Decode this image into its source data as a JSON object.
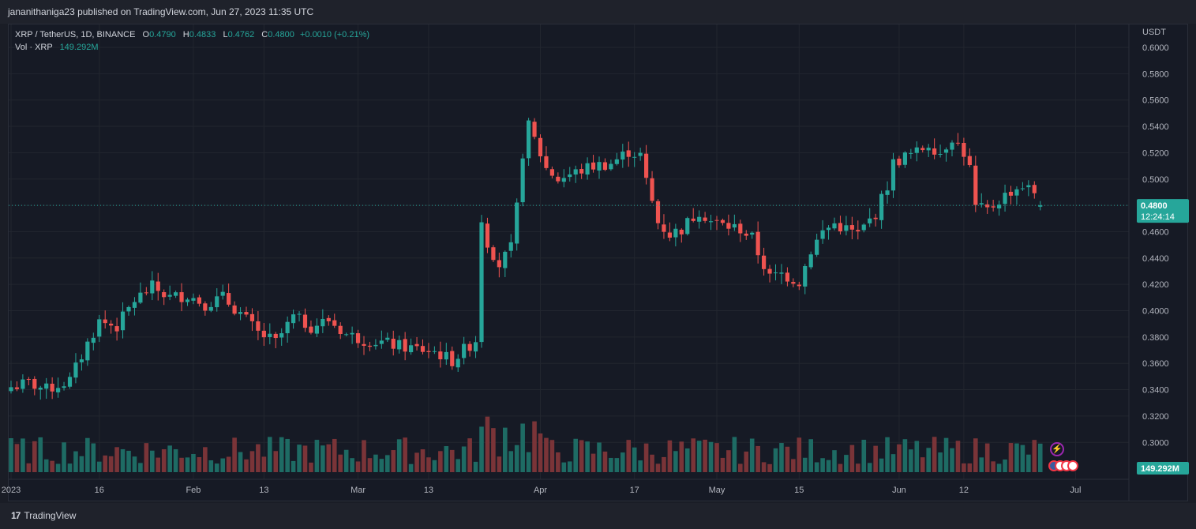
{
  "header": {
    "publish_info": "jananithaniga23 published on TradingView.com, Jun 27, 2023 11:35 UTC"
  },
  "legend": {
    "symbol": "XRP / TetherUS, 1D, BINANCE",
    "o_label": "O",
    "o_value": "0.4790",
    "h_label": "H",
    "h_value": "0.4833",
    "l_label": "L",
    "l_value": "0.4762",
    "c_label": "C",
    "c_value": "0.4800",
    "change": "+0.0010 (+0.21%)",
    "vol_label": "Vol · XRP",
    "vol_value": "149.292M"
  },
  "footer": {
    "brand": "TradingView",
    "brand_mark": "17"
  },
  "colors": {
    "up": "#26a69a",
    "down": "#ef5350",
    "up_vol": "#1e6b64",
    "down_vol": "#7a3438",
    "grid": "#22262f",
    "price_line": "#26a69a"
  },
  "chart_data": {
    "type": "candlestick",
    "currency": "USDT",
    "ylim": [
      0.285,
      0.605
    ],
    "y_ticks": [
      "0.6000",
      "0.5800",
      "0.5600",
      "0.5400",
      "0.5200",
      "0.5000",
      "0.4800",
      "0.4600",
      "0.4400",
      "0.4200",
      "0.4000",
      "0.3800",
      "0.3600",
      "0.3400",
      "0.3200",
      "0.3000"
    ],
    "x_ticks": [
      {
        "label": "2023",
        "index": 0
      },
      {
        "label": "16",
        "index": 15
      },
      {
        "label": "Feb",
        "index": 31
      },
      {
        "label": "13",
        "index": 43
      },
      {
        "label": "Mar",
        "index": 59
      },
      {
        "label": "13",
        "index": 71
      },
      {
        "label": "Apr",
        "index": 90
      },
      {
        "label": "17",
        "index": 106
      },
      {
        "label": "May",
        "index": 120
      },
      {
        "label": "15",
        "index": 134
      },
      {
        "label": "Jun",
        "index": 151
      },
      {
        "label": "12",
        "index": 162
      },
      {
        "label": "Jul",
        "index": 181
      }
    ],
    "total_slots": 183,
    "last_price": "0.4800",
    "countdown": "12:24:14",
    "last_volume": "149.292M",
    "keypoints": [
      [
        0,
        0.342
      ],
      [
        3,
        0.345
      ],
      [
        6,
        0.34
      ],
      [
        10,
        0.347
      ],
      [
        13,
        0.375
      ],
      [
        15,
        0.392
      ],
      [
        18,
        0.388
      ],
      [
        21,
        0.408
      ],
      [
        24,
        0.418
      ],
      [
        27,
        0.41
      ],
      [
        30,
        0.412
      ],
      [
        33,
        0.405
      ],
      [
        36,
        0.41
      ],
      [
        39,
        0.398
      ],
      [
        42,
        0.383
      ],
      [
        45,
        0.376
      ],
      [
        48,
        0.395
      ],
      [
        51,
        0.388
      ],
      [
        54,
        0.393
      ],
      [
        57,
        0.382
      ],
      [
        60,
        0.378
      ],
      [
        63,
        0.376
      ],
      [
        66,
        0.373
      ],
      [
        69,
        0.371
      ],
      [
        72,
        0.369
      ],
      [
        75,
        0.362
      ],
      [
        78,
        0.374
      ],
      [
        79,
        0.378
      ],
      [
        80,
        0.47
      ],
      [
        81,
        0.452
      ],
      [
        83,
        0.435
      ],
      [
        85,
        0.447
      ],
      [
        86,
        0.478
      ],
      [
        87,
        0.52
      ],
      [
        88,
        0.54
      ],
      [
        89,
        0.53
      ],
      [
        91,
        0.508
      ],
      [
        93,
        0.5
      ],
      [
        96,
        0.505
      ],
      [
        99,
        0.51
      ],
      [
        102,
        0.512
      ],
      [
        105,
        0.521
      ],
      [
        107,
        0.518
      ],
      [
        108,
        0.498
      ],
      [
        110,
        0.467
      ],
      [
        112,
        0.458
      ],
      [
        114,
        0.462
      ],
      [
        117,
        0.476
      ],
      [
        119,
        0.468
      ],
      [
        121,
        0.465
      ],
      [
        124,
        0.462
      ],
      [
        126,
        0.455
      ],
      [
        127,
        0.444
      ],
      [
        129,
        0.425
      ],
      [
        131,
        0.428
      ],
      [
        134,
        0.422
      ],
      [
        136,
        0.446
      ],
      [
        138,
        0.46
      ],
      [
        140,
        0.466
      ],
      [
        142,
        0.462
      ],
      [
        144,
        0.458
      ],
      [
        147,
        0.474
      ],
      [
        149,
        0.495
      ],
      [
        150,
        0.512
      ],
      [
        152,
        0.517
      ],
      [
        154,
        0.52
      ],
      [
        156,
        0.527
      ],
      [
        158,
        0.52
      ],
      [
        160,
        0.532
      ],
      [
        162,
        0.52
      ],
      [
        163,
        0.508
      ],
      [
        164,
        0.478
      ],
      [
        166,
        0.476
      ],
      [
        168,
        0.484
      ],
      [
        170,
        0.491
      ],
      [
        172,
        0.495
      ],
      [
        174,
        0.49
      ],
      [
        175,
        0.48
      ]
    ]
  }
}
